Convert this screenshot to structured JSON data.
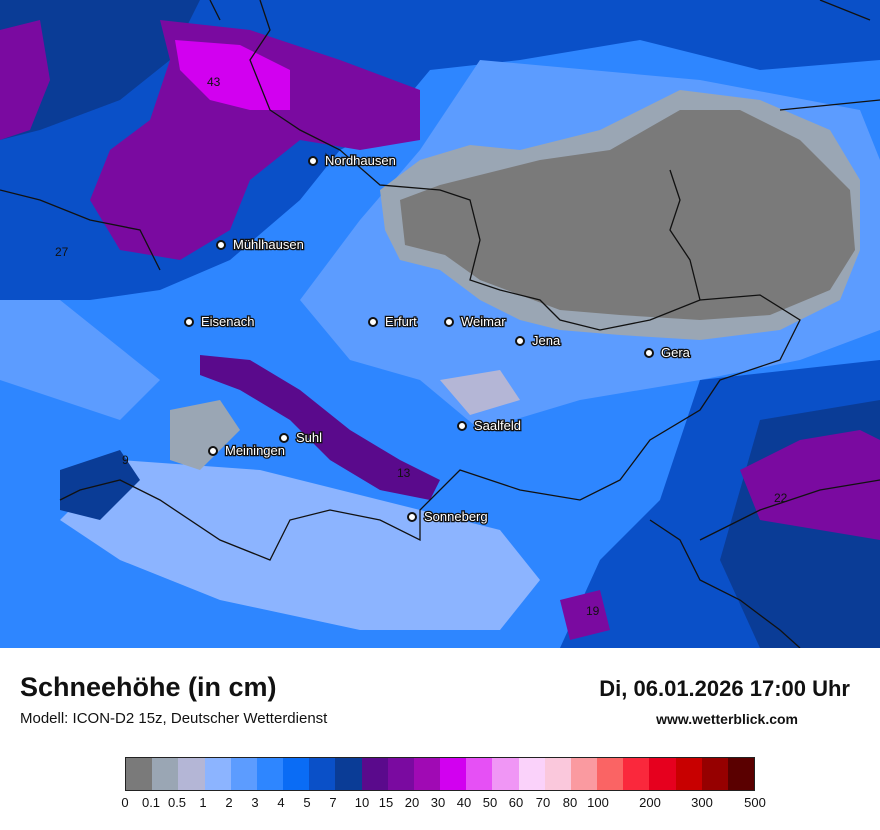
{
  "title": "Schneehöhe (in cm)",
  "model": "Modell: ICON-D2 15z, Deutscher Wetterdienst",
  "datetime": "Di, 06.01.2026 17:00 Uhr",
  "website": "www.wetterblick.com",
  "cities": [
    {
      "name": "Nordhausen"
    },
    {
      "name": "Mühlhausen"
    },
    {
      "name": "Eisenach"
    },
    {
      "name": "Erfurt"
    },
    {
      "name": "Weimar"
    },
    {
      "name": "Jena"
    },
    {
      "name": "Gera"
    },
    {
      "name": "Saalfeld"
    },
    {
      "name": "Suhl"
    },
    {
      "name": "Meiningen"
    },
    {
      "name": "Sonneberg"
    }
  ],
  "values": [
    "43",
    "27",
    "13",
    "22",
    "19",
    "9"
  ],
  "legend": {
    "colors": [
      "#7a7a7a",
      "#9aa6b4",
      "#b4b6d6",
      "#8cb4ff",
      "#5c9cff",
      "#2e86ff",
      "#0a6cf5",
      "#0a50c8",
      "#0a3c96",
      "#5a0a8c",
      "#7a0aa0",
      "#a00ab4",
      "#d200f0",
      "#e650f5",
      "#f096f5",
      "#fad2fa",
      "#fac8dc",
      "#fa9aa0",
      "#fa6464",
      "#fa283c",
      "#e6001e",
      "#c80000",
      "#960000",
      "#5a0000"
    ],
    "labels": [
      "0",
      "0.1",
      "0.5",
      "1",
      "2",
      "3",
      "4",
      "5",
      "7",
      "10",
      "15",
      "20",
      "30",
      "40",
      "50",
      "60",
      "70",
      "80",
      "100",
      "200",
      "300",
      "500"
    ]
  }
}
